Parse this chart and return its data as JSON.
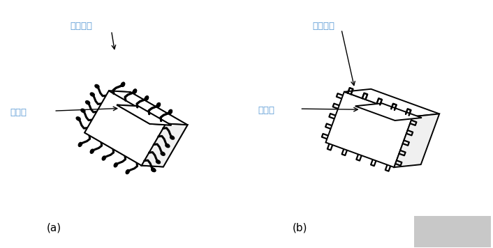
{
  "background_color": "#ffffff",
  "line_color": "#000000",
  "line_width": 1.4,
  "label_a": "(a)",
  "label_b": "(b)",
  "label_gullwing": "鸥翼引脚",
  "label_flat": "平面引脚",
  "label_thermal_a": "热焊盘",
  "label_thermal_b": "热焊盘",
  "annotation_color": "#5b9bd5",
  "arrow_color": "#000000"
}
